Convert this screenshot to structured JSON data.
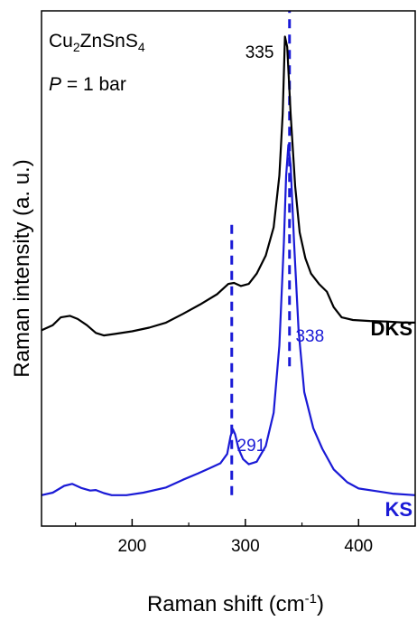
{
  "chart_data": {
    "type": "line",
    "xlabel_base": "Raman shift (cm",
    "xlabel_sup": "-1",
    "xlabel_close": ")",
    "ylabel": "Raman intensity (a. u.)",
    "xlim": [
      120,
      450
    ],
    "ylim": [
      0,
      1
    ],
    "xticks": [
      200,
      300,
      400
    ],
    "xtick_labels": [
      "200",
      "300",
      "400"
    ],
    "yticks_visible": false,
    "sample": {
      "parts": [
        {
          "t": "Cu",
          "sub": false
        },
        {
          "t": "2",
          "sub": true
        },
        {
          "t": "ZnSnS",
          "sub": false
        },
        {
          "t": "4",
          "sub": true
        }
      ]
    },
    "pressure": {
      "symbol": "P",
      "rest": " = 1 bar"
    },
    "peak_labels": [
      {
        "text": "335",
        "color": "#000000",
        "x": 335
      },
      {
        "text": "338",
        "color": "#1a1ad6",
        "x": 338
      },
      {
        "text": "291",
        "color": "#1a1ad6",
        "x": 291
      }
    ],
    "guide_lines": [
      {
        "x": 288,
        "ymin": 0.06,
        "ymax": 0.59,
        "color": "#1a1ad6"
      },
      {
        "x": 339,
        "ymin": 0.31,
        "ymax": 1.0,
        "color": "#1a1ad6"
      }
    ],
    "series": [
      {
        "name": "DKS",
        "color": "#000000",
        "points": [
          [
            120,
            0.38
          ],
          [
            130,
            0.39
          ],
          [
            137,
            0.405
          ],
          [
            145,
            0.408
          ],
          [
            152,
            0.402
          ],
          [
            160,
            0.39
          ],
          [
            168,
            0.375
          ],
          [
            175,
            0.37
          ],
          [
            185,
            0.373
          ],
          [
            200,
            0.378
          ],
          [
            215,
            0.385
          ],
          [
            230,
            0.395
          ],
          [
            245,
            0.412
          ],
          [
            260,
            0.43
          ],
          [
            275,
            0.45
          ],
          [
            285,
            0.47
          ],
          [
            290,
            0.472
          ],
          [
            296,
            0.466
          ],
          [
            303,
            0.47
          ],
          [
            310,
            0.49
          ],
          [
            318,
            0.525
          ],
          [
            325,
            0.58
          ],
          [
            330,
            0.68
          ],
          [
            333,
            0.8
          ],
          [
            335,
            0.95
          ],
          [
            337,
            0.93
          ],
          [
            340,
            0.8
          ],
          [
            344,
            0.66
          ],
          [
            348,
            0.57
          ],
          [
            353,
            0.52
          ],
          [
            358,
            0.49
          ],
          [
            365,
            0.47
          ],
          [
            372,
            0.455
          ],
          [
            378,
            0.425
          ],
          [
            385,
            0.405
          ],
          [
            395,
            0.4
          ],
          [
            410,
            0.398
          ],
          [
            425,
            0.397
          ],
          [
            440,
            0.395
          ],
          [
            450,
            0.395
          ]
        ]
      },
      {
        "name": "KS",
        "color": "#1a1ad6",
        "points": [
          [
            120,
            0.06
          ],
          [
            130,
            0.065
          ],
          [
            140,
            0.078
          ],
          [
            147,
            0.082
          ],
          [
            155,
            0.074
          ],
          [
            163,
            0.069
          ],
          [
            168,
            0.07
          ],
          [
            175,
            0.064
          ],
          [
            182,
            0.06
          ],
          [
            195,
            0.06
          ],
          [
            210,
            0.065
          ],
          [
            230,
            0.075
          ],
          [
            245,
            0.09
          ],
          [
            258,
            0.102
          ],
          [
            268,
            0.112
          ],
          [
            278,
            0.122
          ],
          [
            284,
            0.14
          ],
          [
            287,
            0.175
          ],
          [
            289,
            0.188
          ],
          [
            291,
            0.178
          ],
          [
            294,
            0.15
          ],
          [
            298,
            0.13
          ],
          [
            303,
            0.12
          ],
          [
            310,
            0.125
          ],
          [
            318,
            0.155
          ],
          [
            325,
            0.22
          ],
          [
            330,
            0.35
          ],
          [
            334,
            0.55
          ],
          [
            336,
            0.68
          ],
          [
            338,
            0.74
          ],
          [
            340,
            0.7
          ],
          [
            343,
            0.55
          ],
          [
            347,
            0.38
          ],
          [
            352,
            0.26
          ],
          [
            360,
            0.19
          ],
          [
            368,
            0.15
          ],
          [
            378,
            0.11
          ],
          [
            390,
            0.085
          ],
          [
            400,
            0.073
          ],
          [
            415,
            0.068
          ],
          [
            430,
            0.063
          ],
          [
            450,
            0.06
          ]
        ]
      }
    ]
  }
}
